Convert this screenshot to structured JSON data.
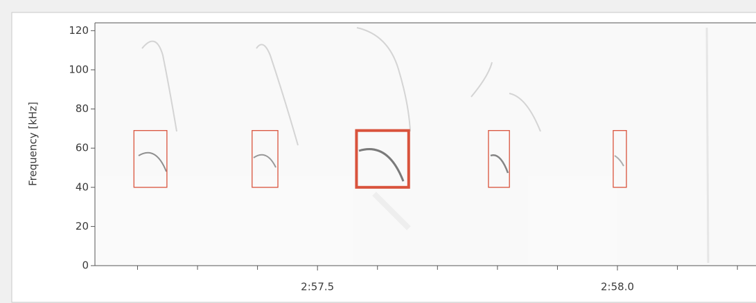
{
  "chart_data": {
    "type": "spectrogram",
    "ylabel": "Frequency [kHz]",
    "ylim": [
      0,
      124
    ],
    "yticks": [
      0,
      20,
      40,
      60,
      80,
      100,
      120
    ],
    "xlim": [
      177.129,
      178.231
    ],
    "xticks": [
      {
        "value": 177.5,
        "label": "2:57.5"
      },
      {
        "value": 178.0,
        "label": "2:58.0"
      }
    ],
    "xminorticks": [
      177.2,
      177.3,
      177.4,
      177.6,
      177.7,
      177.8,
      177.9,
      178.1,
      178.2
    ],
    "box_color": "#d9533c",
    "boxes": [
      {
        "start": 177.194,
        "end": 177.249,
        "low": 40,
        "high": 69
      },
      {
        "start": 177.391,
        "end": 177.434,
        "low": 40,
        "high": 69
      },
      {
        "start": 177.565,
        "end": 177.652,
        "low": 40,
        "high": 69
      },
      {
        "start": 177.785,
        "end": 177.82,
        "low": 40,
        "high": 69
      },
      {
        "start": 177.993,
        "end": 178.015,
        "low": 40,
        "high": 69
      }
    ],
    "selected_box": 2
  }
}
